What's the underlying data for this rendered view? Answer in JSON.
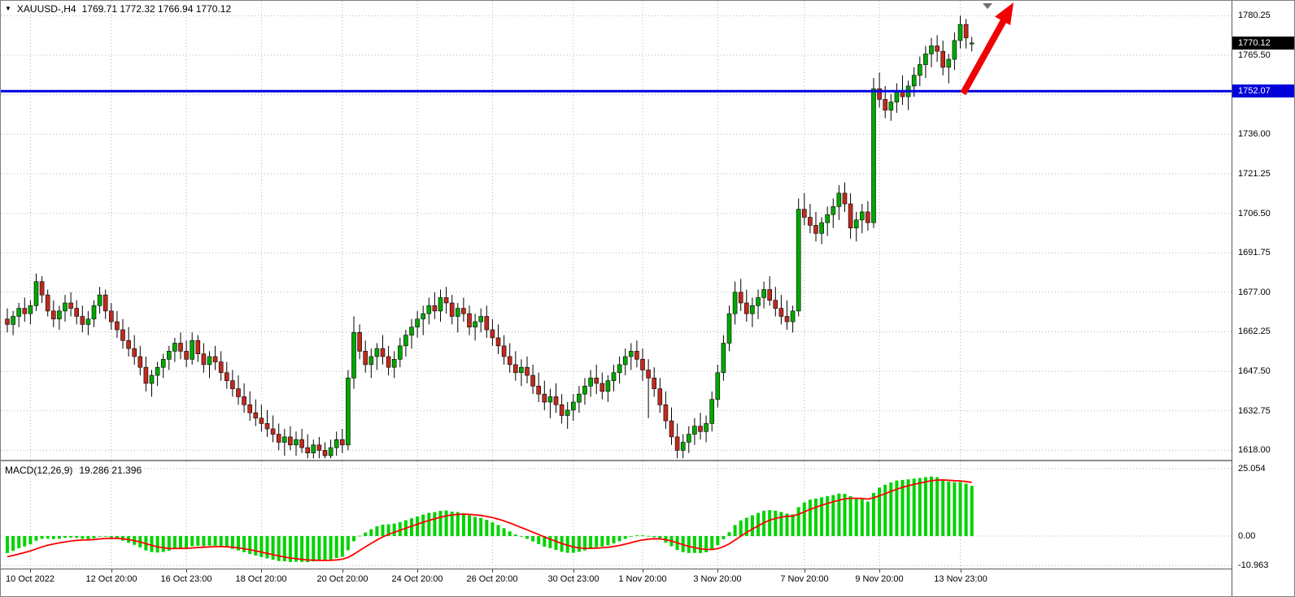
{
  "window": {
    "symbol_label": "XAUUSD-,H4",
    "ohlc_text": "1769.71 1772.32 1766.94 1770.12"
  },
  "colors": {
    "bull": "#00a800",
    "bear": "#c02a1e",
    "wick": "#000000",
    "hline": "#0000e6",
    "arrow": "#f00000",
    "macd_hist": "#00d300",
    "macd_signal": "#ff0000",
    "tag_current_bg": "#000000",
    "tag_hline_bg": "#0000d8",
    "grid": "#b3b3b3"
  },
  "price_axis": {
    "ticks": [
      "1780.25",
      "1765.50",
      "1750.75",
      "1736.00",
      "1721.25",
      "1706.50",
      "1691.75",
      "1677.00",
      "1662.25",
      "1647.50",
      "1632.75",
      "1618.00"
    ],
    "current_price": "1770.12",
    "hline_price": "1752.07"
  },
  "macd": {
    "label": "MACD(12,26,9)",
    "values": "19.286 21.396",
    "axis": [
      "25.054",
      "0.00",
      "-10.963"
    ]
  },
  "time_axis": [
    {
      "label": "10 Oct 2022",
      "index": 4
    },
    {
      "label": "12 Oct 20:00",
      "index": 18
    },
    {
      "label": "16 Oct 23:00",
      "index": 31
    },
    {
      "label": "18 Oct 20:00",
      "index": 44
    },
    {
      "label": "20 Oct 20:00",
      "index": 58
    },
    {
      "label": "24 Oct 20:00",
      "index": 71
    },
    {
      "label": "26 Oct 20:00",
      "index": 84
    },
    {
      "label": "30 Oct 23:00",
      "index": 98
    },
    {
      "label": "1 Nov 20:00",
      "index": 110
    },
    {
      "label": "3 Nov 20:00",
      "index": 123
    },
    {
      "label": "7 Nov 20:00",
      "index": 138
    },
    {
      "label": "9 Nov 20:00",
      "index": 151
    },
    {
      "label": "13 Nov 23:00",
      "index": 165
    }
  ],
  "chart_data": {
    "type": "candlestick",
    "symbol": "XAUUSD",
    "timeframe": "H4",
    "title": "XAUUSD-,H4 1769.71 1772.32 1766.94 1770.12",
    "ohlc_display": {
      "open": 1769.71,
      "high": 1772.32,
      "low": 1766.94,
      "close": 1770.12
    },
    "y_axis": {
      "min": 1618.0,
      "max": 1780.25,
      "step": 14.75
    },
    "horizontal_line": 1752.07,
    "annotation": "red up arrow near last candles",
    "candles": [
      [
        1667,
        1671,
        1662,
        1665
      ],
      [
        1665,
        1670,
        1661,
        1668
      ],
      [
        1668,
        1673,
        1664,
        1671
      ],
      [
        1671,
        1675,
        1666,
        1669
      ],
      [
        1669,
        1674,
        1665,
        1672
      ],
      [
        1672,
        1684,
        1670,
        1681
      ],
      [
        1681,
        1683,
        1673,
        1676
      ],
      [
        1676,
        1678,
        1668,
        1670
      ],
      [
        1670,
        1674,
        1664,
        1667
      ],
      [
        1667,
        1672,
        1663,
        1670
      ],
      [
        1670,
        1676,
        1666,
        1673
      ],
      [
        1673,
        1677,
        1668,
        1671
      ],
      [
        1671,
        1674,
        1665,
        1668
      ],
      [
        1668,
        1672,
        1662,
        1665
      ],
      [
        1665,
        1670,
        1661,
        1667
      ],
      [
        1667,
        1674,
        1664,
        1672
      ],
      [
        1672,
        1679,
        1669,
        1676
      ],
      [
        1676,
        1678,
        1667,
        1670
      ],
      [
        1670,
        1673,
        1663,
        1666
      ],
      [
        1666,
        1670,
        1660,
        1663
      ],
      [
        1663,
        1667,
        1656,
        1659
      ],
      [
        1659,
        1664,
        1653,
        1656
      ],
      [
        1656,
        1661,
        1650,
        1653
      ],
      [
        1653,
        1657,
        1646,
        1649
      ],
      [
        1649,
        1653,
        1640,
        1643
      ],
      [
        1643,
        1648,
        1638,
        1646
      ],
      [
        1646,
        1651,
        1642,
        1649
      ],
      [
        1649,
        1654,
        1645,
        1652
      ],
      [
        1652,
        1657,
        1648,
        1655
      ],
      [
        1655,
        1660,
        1651,
        1658
      ],
      [
        1658,
        1662,
        1652,
        1655
      ],
      [
        1655,
        1659,
        1649,
        1652
      ],
      [
        1652,
        1662,
        1650,
        1659
      ],
      [
        1659,
        1661,
        1651,
        1654
      ],
      [
        1654,
        1658,
        1647,
        1650
      ],
      [
        1650,
        1655,
        1645,
        1653
      ],
      [
        1653,
        1657,
        1648,
        1651
      ],
      [
        1651,
        1655,
        1644,
        1647
      ],
      [
        1647,
        1651,
        1641,
        1644
      ],
      [
        1644,
        1648,
        1638,
        1641
      ],
      [
        1641,
        1646,
        1635,
        1638
      ],
      [
        1638,
        1643,
        1632,
        1635
      ],
      [
        1635,
        1640,
        1629,
        1632
      ],
      [
        1632,
        1637,
        1627,
        1630
      ],
      [
        1630,
        1635,
        1625,
        1628
      ],
      [
        1628,
        1633,
        1623,
        1626
      ],
      [
        1626,
        1631,
        1621,
        1624
      ],
      [
        1624,
        1628,
        1618,
        1621
      ],
      [
        1621,
        1626,
        1616,
        1623
      ],
      [
        1623,
        1627,
        1618,
        1620
      ],
      [
        1620,
        1625,
        1616,
        1622
      ],
      [
        1622,
        1626,
        1617,
        1619
      ],
      [
        1619,
        1624,
        1615,
        1617
      ],
      [
        1617,
        1622,
        1615,
        1620
      ],
      [
        1620,
        1623,
        1615,
        1618
      ],
      [
        1618,
        1621,
        1615,
        1616
      ],
      [
        1616,
        1622,
        1615,
        1619
      ],
      [
        1619,
        1625,
        1616,
        1622
      ],
      [
        1622,
        1626,
        1617,
        1620
      ],
      [
        1620,
        1648,
        1618,
        1645
      ],
      [
        1645,
        1668,
        1641,
        1662
      ],
      [
        1662,
        1665,
        1652,
        1655
      ],
      [
        1655,
        1659,
        1647,
        1650
      ],
      [
        1650,
        1656,
        1645,
        1653
      ],
      [
        1653,
        1658,
        1648,
        1656
      ],
      [
        1656,
        1661,
        1650,
        1653
      ],
      [
        1653,
        1657,
        1646,
        1649
      ],
      [
        1649,
        1655,
        1645,
        1652
      ],
      [
        1652,
        1660,
        1649,
        1657
      ],
      [
        1657,
        1663,
        1653,
        1661
      ],
      [
        1661,
        1667,
        1656,
        1664
      ],
      [
        1664,
        1670,
        1660,
        1667
      ],
      [
        1667,
        1672,
        1661,
        1669
      ],
      [
        1669,
        1675,
        1665,
        1672
      ],
      [
        1672,
        1677,
        1667,
        1670
      ],
      [
        1670,
        1678,
        1666,
        1675
      ],
      [
        1675,
        1679,
        1669,
        1673
      ],
      [
        1673,
        1676,
        1665,
        1668
      ],
      [
        1668,
        1673,
        1662,
        1671
      ],
      [
        1671,
        1675,
        1666,
        1669
      ],
      [
        1669,
        1672,
        1661,
        1664
      ],
      [
        1664,
        1669,
        1659,
        1666
      ],
      [
        1666,
        1671,
        1662,
        1668
      ],
      [
        1668,
        1672,
        1660,
        1663
      ],
      [
        1663,
        1667,
        1657,
        1660
      ],
      [
        1660,
        1665,
        1654,
        1657
      ],
      [
        1657,
        1661,
        1650,
        1653
      ],
      [
        1653,
        1658,
        1647,
        1650
      ],
      [
        1650,
        1655,
        1644,
        1647
      ],
      [
        1647,
        1652,
        1642,
        1649
      ],
      [
        1649,
        1653,
        1643,
        1646
      ],
      [
        1646,
        1650,
        1639,
        1642
      ],
      [
        1642,
        1647,
        1636,
        1639
      ],
      [
        1639,
        1644,
        1633,
        1636
      ],
      [
        1636,
        1641,
        1630,
        1638
      ],
      [
        1638,
        1643,
        1632,
        1635
      ],
      [
        1635,
        1639,
        1628,
        1631
      ],
      [
        1631,
        1636,
        1626,
        1633
      ],
      [
        1633,
        1639,
        1629,
        1636
      ],
      [
        1636,
        1642,
        1632,
        1639
      ],
      [
        1639,
        1645,
        1635,
        1642
      ],
      [
        1642,
        1648,
        1638,
        1645
      ],
      [
        1645,
        1650,
        1639,
        1643
      ],
      [
        1643,
        1647,
        1637,
        1640
      ],
      [
        1640,
        1646,
        1636,
        1644
      ],
      [
        1644,
        1650,
        1640,
        1647
      ],
      [
        1647,
        1653,
        1643,
        1650
      ],
      [
        1650,
        1656,
        1646,
        1653
      ],
      [
        1653,
        1658,
        1648,
        1655
      ],
      [
        1655,
        1659,
        1649,
        1652
      ],
      [
        1652,
        1656,
        1644,
        1648
      ],
      [
        1648,
        1652,
        1630,
        1645
      ],
      [
        1645,
        1649,
        1638,
        1641
      ],
      [
        1641,
        1645,
        1632,
        1635
      ],
      [
        1635,
        1640,
        1626,
        1629
      ],
      [
        1629,
        1634,
        1620,
        1623
      ],
      [
        1623,
        1628,
        1615,
        1618
      ],
      [
        1618,
        1624,
        1615,
        1621
      ],
      [
        1621,
        1627,
        1617,
        1624
      ],
      [
        1624,
        1630,
        1620,
        1627
      ],
      [
        1627,
        1632,
        1622,
        1625
      ],
      [
        1625,
        1631,
        1621,
        1628
      ],
      [
        1628,
        1640,
        1625,
        1637
      ],
      [
        1637,
        1650,
        1634,
        1647
      ],
      [
        1647,
        1661,
        1644,
        1658
      ],
      [
        1658,
        1672,
        1655,
        1669
      ],
      [
        1669,
        1681,
        1665,
        1677
      ],
      [
        1677,
        1682,
        1670,
        1673
      ],
      [
        1673,
        1678,
        1666,
        1669
      ],
      [
        1669,
        1675,
        1664,
        1672
      ],
      [
        1672,
        1678,
        1667,
        1675
      ],
      [
        1675,
        1681,
        1671,
        1678
      ],
      [
        1678,
        1683,
        1672,
        1674
      ],
      [
        1674,
        1679,
        1668,
        1671
      ],
      [
        1671,
        1676,
        1665,
        1668
      ],
      [
        1668,
        1674,
        1663,
        1666
      ],
      [
        1666,
        1672,
        1662,
        1670
      ],
      [
        1670,
        1712,
        1668,
        1708
      ],
      [
        1708,
        1714,
        1702,
        1705
      ],
      [
        1705,
        1710,
        1699,
        1702
      ],
      [
        1702,
        1707,
        1696,
        1699
      ],
      [
        1699,
        1705,
        1695,
        1703
      ],
      [
        1703,
        1709,
        1698,
        1706
      ],
      [
        1706,
        1712,
        1701,
        1709
      ],
      [
        1709,
        1717,
        1704,
        1714
      ],
      [
        1714,
        1718,
        1707,
        1710
      ],
      [
        1710,
        1714,
        1697,
        1701
      ],
      [
        1701,
        1707,
        1696,
        1704
      ],
      [
        1704,
        1710,
        1699,
        1707
      ],
      [
        1707,
        1711,
        1700,
        1703
      ],
      [
        1703,
        1757,
        1701,
        1753
      ],
      [
        1753,
        1759,
        1746,
        1749
      ],
      [
        1749,
        1754,
        1742,
        1745
      ],
      [
        1745,
        1751,
        1741,
        1748
      ],
      [
        1748,
        1755,
        1744,
        1752
      ],
      [
        1752,
        1758,
        1747,
        1750
      ],
      [
        1750,
        1756,
        1745,
        1754
      ],
      [
        1754,
        1761,
        1750,
        1758
      ],
      [
        1758,
        1765,
        1754,
        1762
      ],
      [
        1762,
        1769,
        1757,
        1766
      ],
      [
        1766,
        1772,
        1761,
        1769
      ],
      [
        1769,
        1773,
        1763,
        1767
      ],
      [
        1767,
        1771,
        1758,
        1761
      ],
      [
        1761,
        1766,
        1755,
        1764
      ],
      [
        1764,
        1774,
        1760,
        1771
      ],
      [
        1771,
        1780.25,
        1768,
        1777
      ],
      [
        1777,
        1779,
        1768,
        1772
      ],
      [
        1769.71,
        1772.32,
        1766.94,
        1770.12
      ]
    ],
    "macd_settings": {
      "fast": 12,
      "slow": 26,
      "signal": 9,
      "main_value": 19.286,
      "signal_value": 21.396,
      "axis_max": 25.054,
      "axis_min": -10.963
    }
  }
}
